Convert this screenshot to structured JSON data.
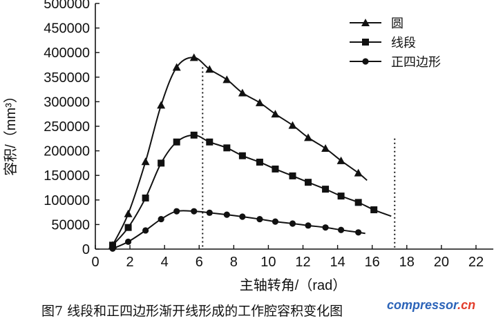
{
  "chart_data": {
    "type": "line",
    "xlabel": "主轴转角/（rad）",
    "ylabel": "容积/（mm³）",
    "xlim": [
      0,
      23
    ],
    "ylim": [
      0,
      500000
    ],
    "x_ticks": [
      0,
      2,
      4,
      6,
      8,
      10,
      12,
      14,
      16,
      18,
      20,
      22
    ],
    "y_ticks": [
      0,
      50000,
      100000,
      150000,
      200000,
      250000,
      300000,
      350000,
      400000,
      450000,
      500000
    ],
    "grid": false,
    "legend_position": "top-right",
    "series": [
      {
        "name": "圆",
        "marker": "triangle",
        "x": [
          1.0,
          1.9,
          2.9,
          3.8,
          4.7,
          5.7,
          6.6,
          7.6,
          8.5,
          9.5,
          10.4,
          11.4,
          12.3,
          13.3,
          14.2,
          15.2,
          15.7
        ],
        "y": [
          8000,
          72000,
          178000,
          293000,
          370000,
          390000,
          366000,
          345000,
          318000,
          298000,
          275000,
          252000,
          227000,
          205000,
          180000,
          155000,
          140000
        ]
      },
      {
        "name": "线段",
        "marker": "square",
        "x": [
          1.0,
          1.9,
          2.9,
          3.8,
          4.7,
          5.7,
          6.6,
          7.6,
          8.5,
          9.5,
          10.4,
          11.4,
          12.3,
          13.3,
          14.2,
          15.2,
          16.1,
          17.1
        ],
        "y": [
          8000,
          44000,
          104000,
          175000,
          218000,
          232000,
          218000,
          206000,
          190000,
          177000,
          163000,
          149000,
          136000,
          122000,
          108000,
          95000,
          80000,
          67000
        ]
      },
      {
        "name": "正四边形",
        "marker": "circle",
        "x": [
          1.0,
          1.9,
          2.9,
          3.8,
          4.7,
          5.7,
          6.6,
          7.6,
          8.5,
          9.5,
          10.4,
          11.4,
          12.3,
          13.3,
          14.2,
          15.2,
          15.6
        ],
        "y": [
          1000,
          15000,
          38000,
          61000,
          77000,
          77000,
          74000,
          70000,
          66000,
          61000,
          56000,
          52000,
          48000,
          44000,
          39000,
          34000,
          32000
        ]
      }
    ],
    "reference_lines_x": [
      6.2,
      17.3
    ],
    "caption": "图7 线段和正四边形渐开线形成的工作腔容积变化图"
  },
  "watermark": {
    "main": "compressor",
    "accent": ".cn"
  }
}
